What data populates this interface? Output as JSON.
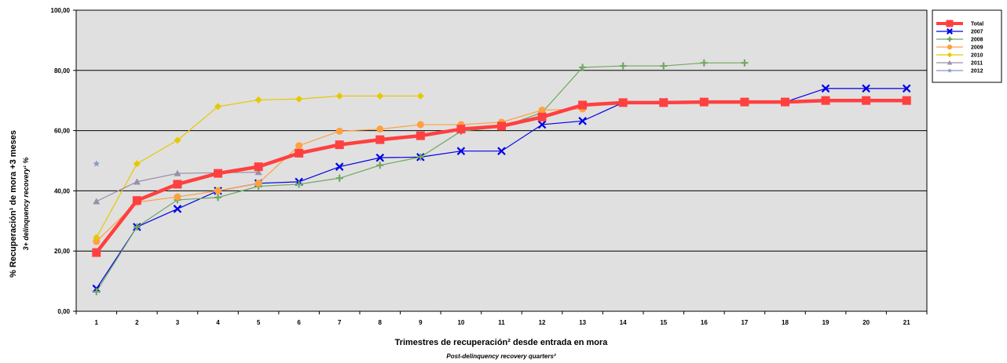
{
  "chart_data": {
    "type": "line",
    "xlabel": "Trimestres de recuperación² desde entrada en mora",
    "xlabel_sub": "Post-delinquency recovery quarters²",
    "ylabel": "% Recuperación¹ de mora +3 meses",
    "ylabel_sub": "3+ delinquency recovery¹ %",
    "ylim": [
      0,
      100
    ],
    "y_ticks": [
      "0,00",
      "20,00",
      "40,00",
      "60,00",
      "80,00",
      "100,00"
    ],
    "x": [
      1,
      2,
      3,
      4,
      5,
      6,
      7,
      8,
      9,
      10,
      11,
      12,
      13,
      14,
      15,
      16,
      17,
      18,
      19,
      20,
      21
    ],
    "grid": true,
    "legend_position": "right",
    "plot_background": "#e0e0e0",
    "series": [
      {
        "name": "Total",
        "color": "#ff4040",
        "marker": "square",
        "values": [
          19.5,
          36.8,
          42.2,
          45.8,
          48.0,
          52.5,
          55.3,
          57.0,
          58.3,
          60.5,
          61.5,
          64.5,
          68.5,
          69.3,
          69.3,
          69.5,
          69.5,
          69.5,
          70.0,
          70.0,
          70.0
        ]
      },
      {
        "name": "2007",
        "color": "#0000e6",
        "marker": "x",
        "values": [
          7.5,
          28.0,
          34.0,
          40.0,
          42.5,
          43.0,
          48.0,
          51.0,
          51.2,
          53.2,
          53.2,
          62.0,
          63.2,
          69.3,
          69.5,
          69.5,
          69.5,
          69.5,
          74.0,
          74.0,
          74.0
        ]
      },
      {
        "name": "2008",
        "color": "#70a860",
        "marker": "plus",
        "values": [
          6.5,
          28.0,
          37.0,
          37.8,
          41.5,
          42.2,
          44.2,
          48.5,
          51.2,
          59.8,
          61.2,
          66.0,
          81.0,
          81.5,
          81.5,
          82.5,
          82.5,
          null,
          null,
          null,
          null
        ]
      },
      {
        "name": "2009",
        "color": "#ffa040",
        "marker": "circle",
        "values": [
          23.2,
          36.2,
          38.0,
          40.0,
          42.5,
          55.0,
          59.8,
          60.5,
          62.0,
          62.0,
          62.8,
          66.8,
          67.2,
          null,
          null,
          null,
          null,
          null,
          null,
          null,
          null
        ]
      },
      {
        "name": "2010",
        "color": "#e6c800",
        "marker": "diamond",
        "values": [
          24.5,
          49.0,
          56.8,
          68.0,
          70.2,
          70.5,
          71.5,
          71.5,
          71.5,
          null,
          null,
          null,
          null,
          null,
          null,
          null,
          null,
          null,
          null,
          null,
          null
        ]
      },
      {
        "name": "2011",
        "color": "#9b8fa8",
        "marker": "triangle",
        "values": [
          36.5,
          43.0,
          45.8,
          46.0,
          46.2,
          null,
          null,
          null,
          null,
          null,
          null,
          null,
          null,
          null,
          null,
          null,
          null,
          null,
          null,
          null,
          null
        ]
      },
      {
        "name": "2012",
        "color": "#8898c8",
        "marker": "star",
        "values": [
          49.0,
          null,
          null,
          null,
          null,
          null,
          null,
          null,
          null,
          null,
          null,
          null,
          null,
          null,
          null,
          null,
          null,
          null,
          null,
          null,
          null
        ]
      }
    ]
  }
}
